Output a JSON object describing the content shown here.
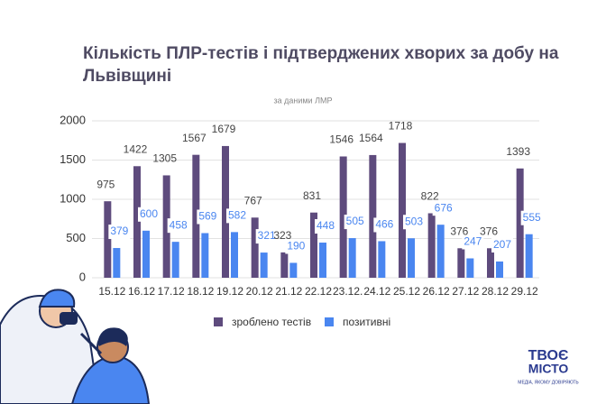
{
  "chart_data": {
    "type": "bar",
    "title": "Кількість ПЛР-тестів і підтверджених хворих за добу на Львівщині",
    "subtitle": "за даними ЛМР",
    "categories": [
      "15.12",
      "16.12",
      "17.12",
      "18.12",
      "19.12",
      "20.12",
      "21.12",
      "22.12",
      "23.12.",
      "24.12",
      "25.12",
      "26.12",
      "27.12",
      "28.12",
      "29.12"
    ],
    "series": [
      {
        "name": "зроблено тестів",
        "color": "#5e4b7d",
        "values": [
          975,
          1422,
          1305,
          1567,
          1679,
          767,
          323,
          831,
          1546,
          1564,
          1718,
          822,
          376,
          376,
          1393
        ]
      },
      {
        "name": "позитивні",
        "color": "#4a86f0",
        "values": [
          379,
          600,
          458,
          569,
          582,
          321,
          190,
          448,
          505,
          466,
          503,
          676,
          247,
          207,
          555
        ]
      }
    ],
    "ylim": [
      0,
      2000
    ],
    "yticks": [
      0,
      500,
      1000,
      1500,
      2000
    ],
    "grid": true,
    "legend": "bottom"
  },
  "logo": {
    "lines": [
      "ТВОЄ",
      "МІСТО"
    ],
    "tagline": "МЕДІА, ЯКОМУ ДОВІРЯЮТЬ"
  }
}
